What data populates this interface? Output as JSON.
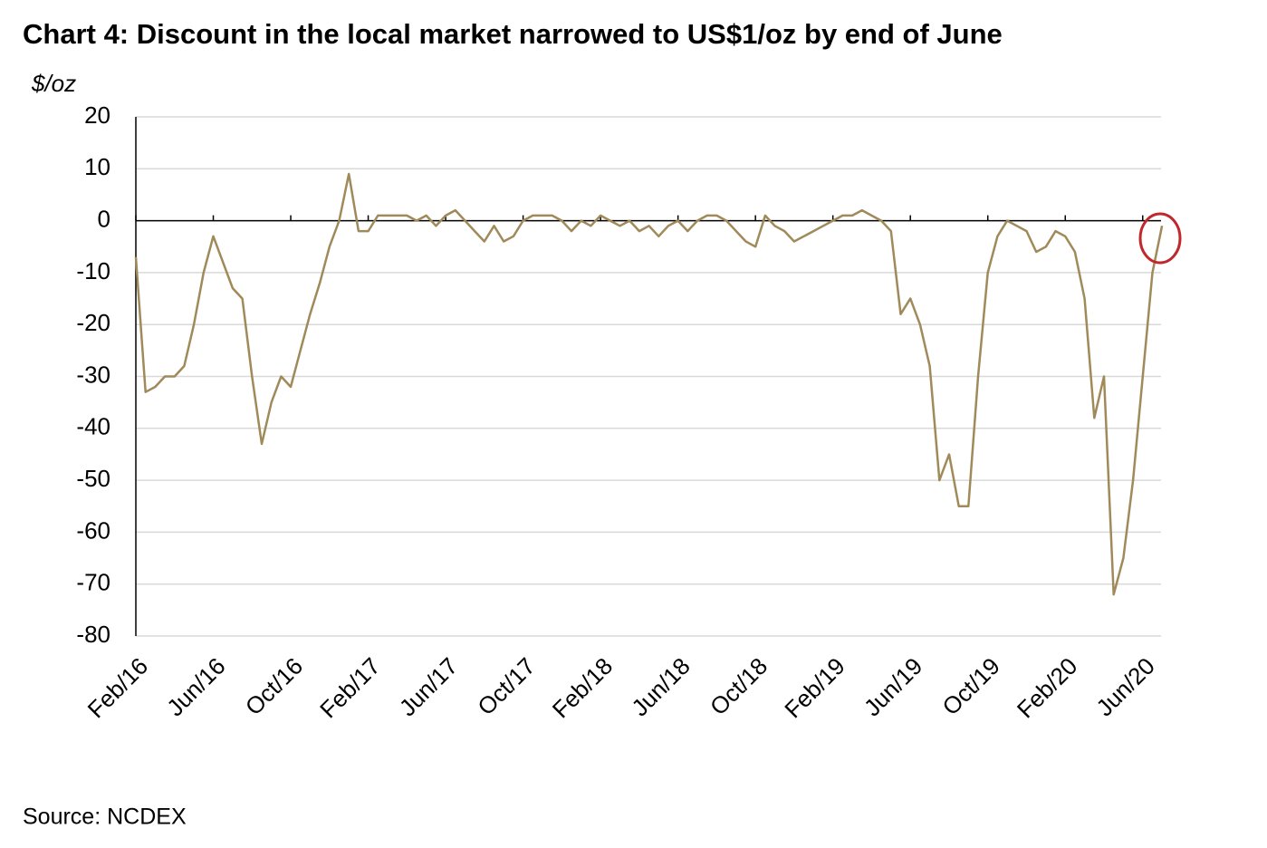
{
  "chart_data": {
    "type": "line",
    "title": "Chart 4: Discount in the local market narrowed to US$1/oz by end of June",
    "y_label": "$/oz",
    "source": "Source: NCDEX",
    "categories": [
      "Feb/16",
      null,
      null,
      null,
      null,
      null,
      null,
      null,
      "Jun/16",
      null,
      null,
      null,
      null,
      null,
      null,
      null,
      "Oct/16",
      null,
      null,
      null,
      null,
      null,
      null,
      null,
      "Feb/17",
      null,
      null,
      null,
      null,
      null,
      null,
      null,
      "Jun/17",
      null,
      null,
      null,
      null,
      null,
      null,
      null,
      "Oct/17",
      null,
      null,
      null,
      null,
      null,
      null,
      null,
      "Feb/18",
      null,
      null,
      null,
      null,
      null,
      null,
      null,
      "Jun/18",
      null,
      null,
      null,
      null,
      null,
      null,
      null,
      "Oct/18",
      null,
      null,
      null,
      null,
      null,
      null,
      null,
      "Feb/19",
      null,
      null,
      null,
      null,
      null,
      null,
      null,
      "Jun/19",
      null,
      null,
      null,
      null,
      null,
      null,
      null,
      "Oct/19",
      null,
      null,
      null,
      null,
      null,
      null,
      null,
      "Feb/20",
      null,
      null,
      null,
      null,
      null,
      null,
      null,
      "Jun/20",
      null,
      null
    ],
    "values": [
      -7,
      -33,
      -32,
      -30,
      -30,
      -28,
      -20,
      -10,
      -3,
      -8,
      -13,
      -15,
      -30,
      -43,
      -35,
      -30,
      -32,
      -25,
      -18,
      -12,
      -5,
      0,
      9,
      -2,
      -2,
      1,
      1,
      1,
      1,
      0,
      1,
      -1,
      1,
      2,
      0,
      -2,
      -4,
      -1,
      -4,
      -3,
      0,
      1,
      1,
      1,
      0,
      -2,
      0,
      -1,
      1,
      0,
      -1,
      0,
      -2,
      -1,
      -3,
      -1,
      0,
      -2,
      0,
      1,
      1,
      0,
      -2,
      -4,
      -5,
      1,
      -1,
      -2,
      -4,
      -3,
      -2,
      -1,
      0,
      1,
      1,
      2,
      1,
      0,
      -2,
      -18,
      -15,
      -20,
      -28,
      -50,
      -45,
      -55,
      -55,
      -30,
      -10,
      -3,
      0,
      -1,
      -2,
      -6,
      -5,
      -2,
      -3,
      -6,
      -15,
      -38,
      -30,
      -72,
      -65,
      -50,
      -30,
      -10,
      -1
    ],
    "color": "#a08a5a",
    "ylim": [
      -80,
      20
    ],
    "yticks": [
      -80,
      -70,
      -60,
      -50,
      -40,
      -30,
      -20,
      -10,
      0,
      10,
      20
    ],
    "grid": true
  }
}
